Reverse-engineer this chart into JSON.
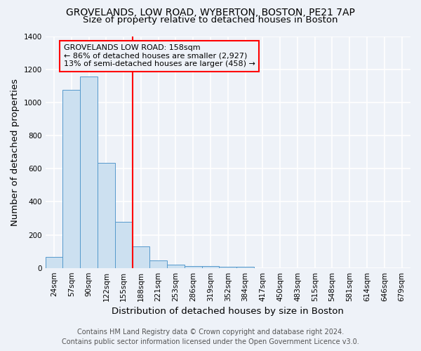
{
  "title": "GROVELANDS, LOW ROAD, WYBERTON, BOSTON, PE21 7AP",
  "subtitle": "Size of property relative to detached houses in Boston",
  "xlabel": "Distribution of detached houses by size in Boston",
  "ylabel": "Number of detached properties",
  "footnote": "Contains HM Land Registry data © Crown copyright and database right 2024.\nContains public sector information licensed under the Open Government Licence v3.0.",
  "bar_labels": [
    "24sqm",
    "57sqm",
    "90sqm",
    "122sqm",
    "155sqm",
    "188sqm",
    "221sqm",
    "253sqm",
    "286sqm",
    "319sqm",
    "352sqm",
    "384sqm",
    "417sqm",
    "450sqm",
    "483sqm",
    "515sqm",
    "548sqm",
    "581sqm",
    "614sqm",
    "646sqm",
    "679sqm"
  ],
  "bar_values": [
    65,
    1075,
    1155,
    635,
    280,
    130,
    47,
    20,
    12,
    12,
    8,
    8,
    0,
    0,
    0,
    0,
    0,
    0,
    0,
    0,
    0
  ],
  "bar_color": "#cce0f0",
  "bar_edgecolor": "#5599cc",
  "vline_x": 4.5,
  "vline_color": "red",
  "annotation_box_text": "GROVELANDS LOW ROAD: 158sqm\n← 86% of detached houses are smaller (2,927)\n13% of semi-detached houses are larger (458) →",
  "ylim": [
    0,
    1400
  ],
  "background_color": "#eef2f8",
  "grid_color": "#ffffff",
  "title_fontsize": 10,
  "subtitle_fontsize": 9.5,
  "axis_label_fontsize": 9.5,
  "tick_fontsize": 7.5,
  "footnote_fontsize": 7,
  "annotation_fontsize": 8
}
